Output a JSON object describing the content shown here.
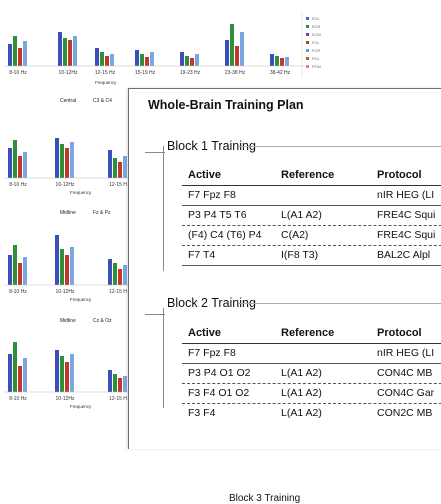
{
  "background_charts": {
    "legend_items": [
      "ECL",
      "ECR",
      "ECM",
      "FCL",
      "FCR",
      "PCL",
      "PCM"
    ],
    "legend_colors": [
      "#4a63c9",
      "#2e8b57",
      "#7b3fa0",
      "#c0392b",
      "#5aa0d8",
      "#d35400",
      "#e377c2"
    ],
    "freq_labels_row1": [
      "8-10 Hz",
      "10-12Hz",
      "12-15 Hz",
      "15-19 Hz",
      "19-23 Hz",
      "23-38 Hz",
      "38-42 Hz"
    ],
    "freq_labels_short": [
      "8-10 Hz",
      "10-12Hz",
      "12-15 H"
    ],
    "axis_title": "Frequency",
    "panel_labels": [
      {
        "left": "Central",
        "right": "C3 & C4"
      },
      {
        "left": "Midline",
        "right": "Fz & Pz"
      },
      {
        "left": "Midline",
        "right": "Cz & Oz"
      }
    ],
    "colors": {
      "blue": "#3b4fb8",
      "green": "#2f8f3a",
      "red": "#c0392b",
      "light_blue": "#7aa7e0"
    }
  },
  "document": {
    "title": "Whole-Brain Training Plan",
    "blocks": [
      {
        "title": "Block 1 Training",
        "columns": [
          "Active",
          "Reference",
          "Protocol"
        ],
        "rows": [
          {
            "active": "F7 Fpz F8",
            "reference": "",
            "protocol": "nIR HEG (LI"
          },
          {
            "active": "P3 P4 T5 T6",
            "reference": "L(A1 A2)",
            "protocol": "FRE4C Squi"
          },
          {
            "active": "(F4) C4 (T6) P4",
            "reference": "C(A2)",
            "protocol": "FRE4C Squi"
          },
          {
            "active": "F7 T4",
            "reference": "I(F8 T3)",
            "protocol": "BAL2C Alpl"
          }
        ]
      },
      {
        "title": "Block 2 Training",
        "columns": [
          "Active",
          "Reference",
          "Protocol"
        ],
        "rows": [
          {
            "active": "F7 Fpz F8",
            "reference": "",
            "protocol": "nIR HEG (LI"
          },
          {
            "active": "P3 P4 O1 O2",
            "reference": "L(A1 A2)",
            "protocol": "CON4C MB"
          },
          {
            "active": "F3 F4 O1 O2",
            "reference": "L(A1 A2)",
            "protocol": "CON4C Gar"
          },
          {
            "active": "F3 F4",
            "reference": "L(A1 A2)",
            "protocol": "CON2C MB"
          }
        ]
      }
    ],
    "next_block_partial": "Block 3 Training"
  }
}
